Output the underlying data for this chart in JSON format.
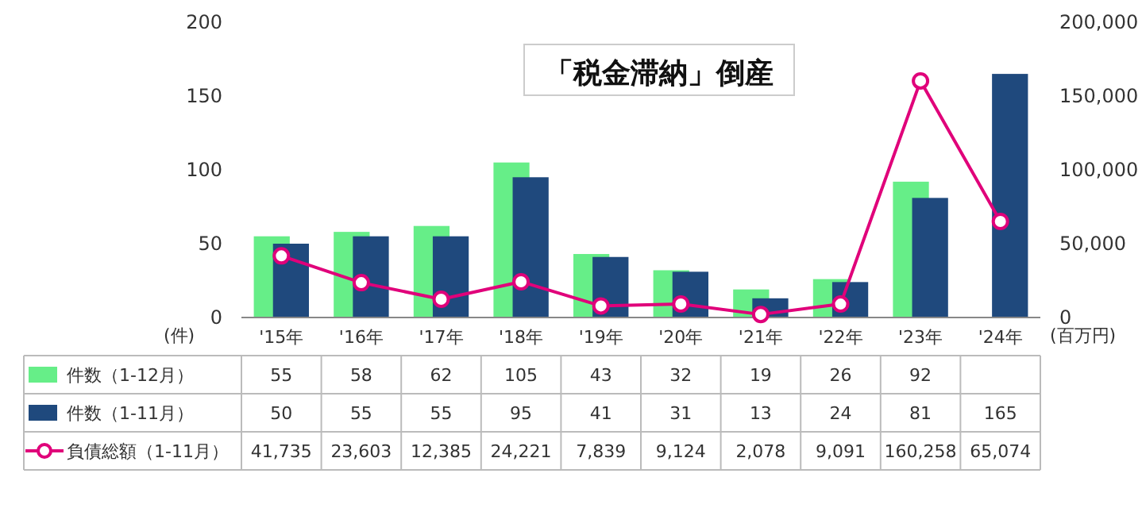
{
  "chart_data": {
    "type": "bar",
    "title": "「税金滞納」倒産",
    "categories": [
      "'15年",
      "'16年",
      "'17年",
      "'18年",
      "'19年",
      "'20年",
      "'21年",
      "'22年",
      "'23年",
      "'24年"
    ],
    "series": [
      {
        "name": "件数（1-12月）",
        "color": "#66ee88",
        "values": [
          55,
          58,
          62,
          105,
          43,
          32,
          19,
          26,
          92,
          null
        ]
      },
      {
        "name": "件数（1-11月）",
        "color": "#1f497d",
        "values": [
          50,
          55,
          55,
          95,
          41,
          31,
          13,
          24,
          81,
          165
        ]
      },
      {
        "name": "負債総額（1-11月）",
        "color": "#e0007a",
        "type": "line",
        "axis": "y2",
        "marker": "circle",
        "values": [
          41735,
          23603,
          12385,
          24221,
          7839,
          9124,
          2078,
          9091,
          160258,
          65074
        ],
        "value_labels": [
          "41,735",
          "23,603",
          "12,385",
          "24,221",
          "7,839",
          "9,124",
          "2,078",
          "9,091",
          "160,258",
          "65,074"
        ]
      }
    ],
    "ylabel": "(件)",
    "y2label": "(百万円)",
    "ylim": [
      0,
      200
    ],
    "yticks": [
      0,
      50,
      100,
      150,
      200
    ],
    "y2lim": [
      0,
      200000
    ],
    "y2ticks": [
      0,
      {
        "value": 50000,
        "label": "50,000"
      },
      {
        "value": 100000,
        "label": "100,000"
      },
      {
        "value": 150000,
        "label": "150,000"
      },
      {
        "value": 200000,
        "label": "200,000"
      }
    ],
    "data_labels": true,
    "legend": "bottom left"
  }
}
